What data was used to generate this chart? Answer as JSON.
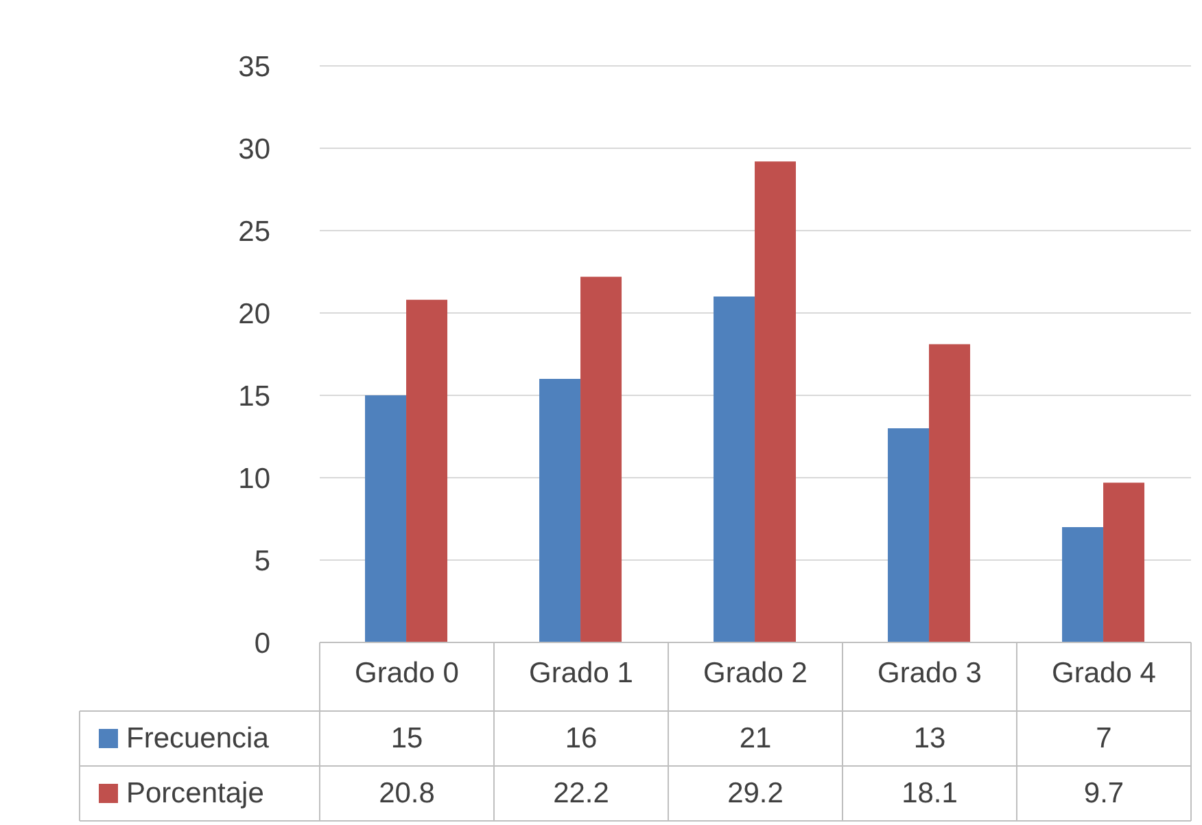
{
  "chart_data": {
    "type": "bar",
    "categories": [
      "Grado 0",
      "Grado 1",
      "Grado 2",
      "Grado 3",
      "Grado 4"
    ],
    "series": [
      {
        "name": "Frecuencia",
        "color": "#4f81bd",
        "values": [
          15,
          16,
          21,
          13,
          7
        ]
      },
      {
        "name": "Porcentaje",
        "color": "#c0504d",
        "values": [
          20.8,
          22.2,
          29.2,
          18.1,
          9.7
        ]
      }
    ],
    "ylim": [
      0,
      35
    ],
    "yticks": [
      0,
      5,
      10,
      15,
      20,
      25,
      30,
      35
    ],
    "grid": "y",
    "legend": "bottom",
    "data_labels": true
  }
}
